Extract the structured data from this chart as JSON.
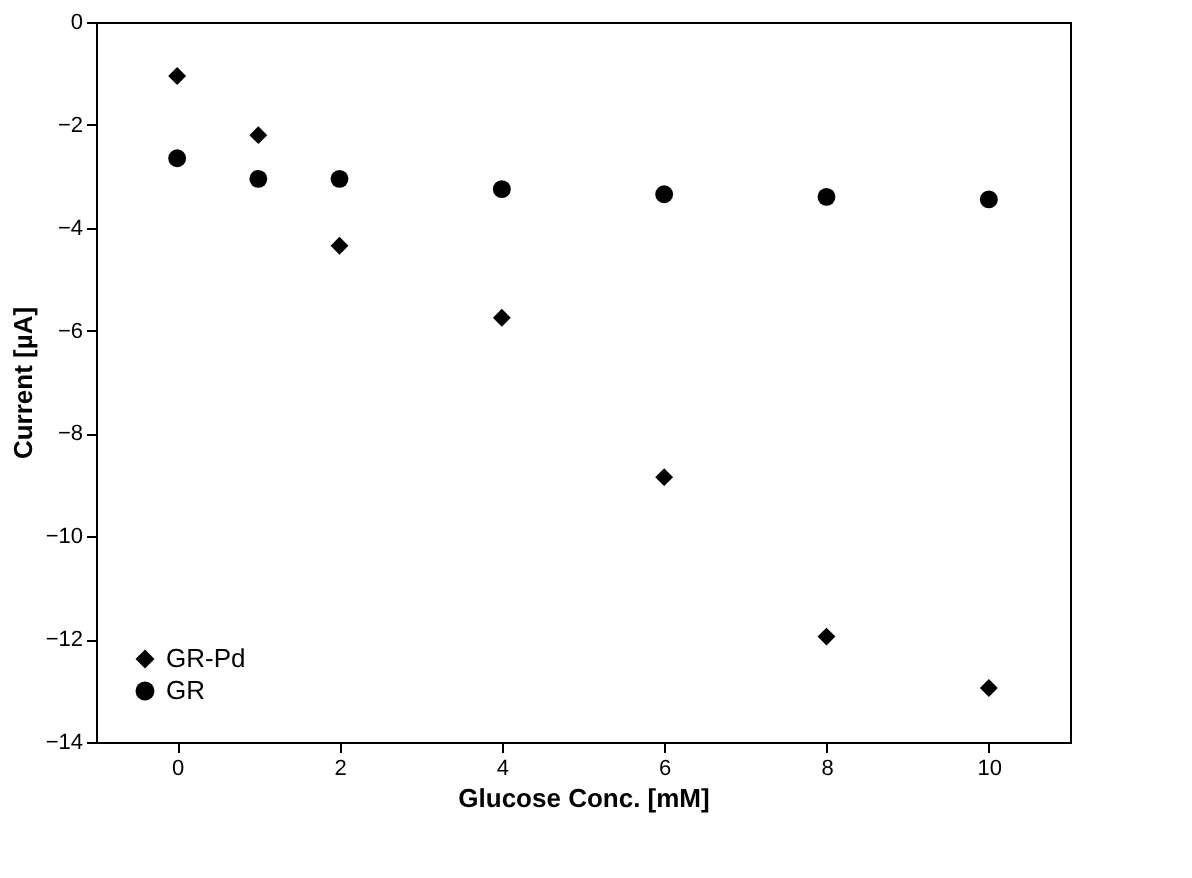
{
  "chart_data": {
    "type": "scatter",
    "xlabel": "Glucose Conc. [mM]",
    "ylabel": "Current [µA]",
    "xlim": [
      -1,
      11
    ],
    "xticks": [
      0,
      2,
      4,
      6,
      8,
      10
    ],
    "ylim": [
      -14,
      0
    ],
    "yticks": [
      -14,
      -12,
      -10,
      -8,
      -6,
      -4,
      -2,
      0
    ],
    "grid": false,
    "legend": "bottom left",
    "series": [
      {
        "name": "GR-Pd",
        "color": "#000000",
        "marker": "diamond",
        "x": [
          0,
          1,
          2,
          4,
          6,
          8,
          10
        ],
        "values": [
          -1.05,
          -2.2,
          -4.35,
          -5.75,
          -8.85,
          -11.95,
          -12.95
        ]
      },
      {
        "name": "GR",
        "color": "#000000",
        "marker": "circle",
        "x": [
          0,
          1,
          2,
          4,
          6,
          8,
          10
        ],
        "values": [
          -2.65,
          -3.05,
          -3.05,
          -3.25,
          -3.35,
          -3.4,
          -3.45
        ]
      }
    ]
  }
}
